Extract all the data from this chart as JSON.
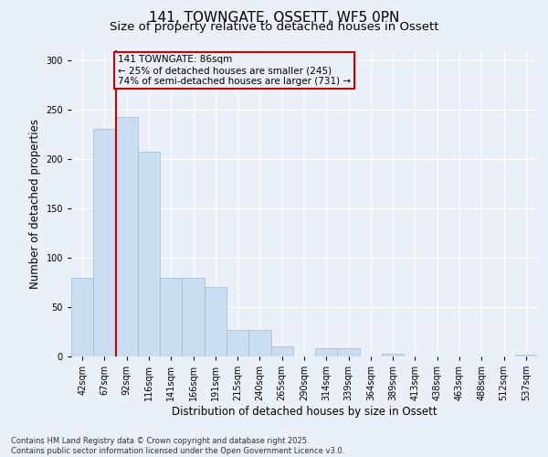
{
  "title1": "141, TOWNGATE, OSSETT, WF5 0PN",
  "title2": "Size of property relative to detached houses in Ossett",
  "xlabel": "Distribution of detached houses by size in Ossett",
  "ylabel": "Number of detached properties",
  "categories": [
    "42sqm",
    "67sqm",
    "92sqm",
    "116sqm",
    "141sqm",
    "166sqm",
    "191sqm",
    "215sqm",
    "240sqm",
    "265sqm",
    "290sqm",
    "314sqm",
    "339sqm",
    "364sqm",
    "389sqm",
    "413sqm",
    "438sqm",
    "463sqm",
    "488sqm",
    "512sqm",
    "537sqm"
  ],
  "values": [
    80,
    230,
    242,
    207,
    80,
    80,
    70,
    27,
    27,
    10,
    0,
    8,
    8,
    0,
    3,
    0,
    0,
    0,
    0,
    0,
    2
  ],
  "bar_color": "#c9ddf0",
  "bar_edgecolor": "#9bbbd8",
  "vline_x": 1.5,
  "vline_color": "#cc0000",
  "annotation_box_text": "141 TOWNGATE: 86sqm\n← 25% of detached houses are smaller (245)\n74% of semi-detached houses are larger (731) →",
  "annotation_box_color": "#cc0000",
  "footnote1": "Contains HM Land Registry data © Crown copyright and database right 2025.",
  "footnote2": "Contains public sector information licensed under the Open Government Licence v3.0.",
  "ylim": [
    0,
    310
  ],
  "yticks": [
    0,
    50,
    100,
    150,
    200,
    250,
    300
  ],
  "background_color": "#eaf0f8",
  "grid_color": "#ffffff",
  "title_fontsize": 11,
  "subtitle_fontsize": 9.5,
  "label_fontsize": 8.5,
  "tick_fontsize": 7,
  "footnote_fontsize": 6,
  "annot_fontsize": 7.5
}
